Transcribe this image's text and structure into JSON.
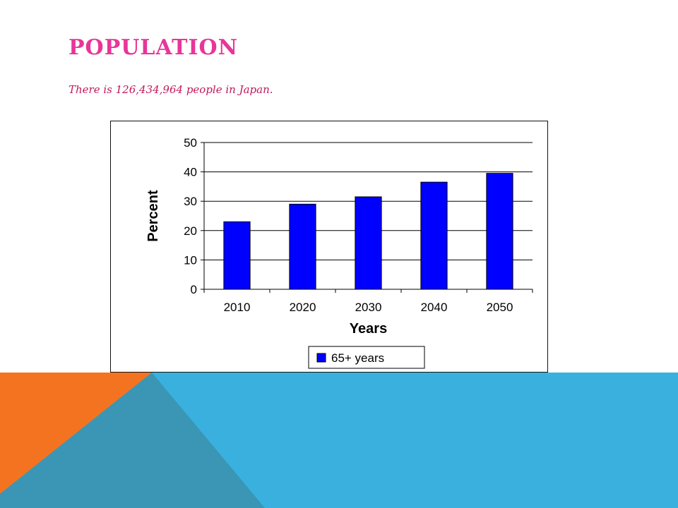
{
  "slide": {
    "title": "Population",
    "subtitle": "There is 126,434,964 people in Japan."
  },
  "colors": {
    "title": "#e8359a",
    "subtitle": "#c2185b",
    "bar_fill": "#0000ff",
    "bar_stroke": "#000000",
    "orange": "#f47321",
    "blue": "#3ab0df",
    "teal": "#3a96b4"
  },
  "chart_data": {
    "type": "bar",
    "categories": [
      "2010",
      "2020",
      "2030",
      "2040",
      "2050"
    ],
    "series": [
      {
        "name": "65+ years",
        "values": [
          23,
          29,
          31.5,
          36.5,
          39.5
        ]
      }
    ],
    "xlabel": "Years",
    "ylabel": "Percent",
    "ylim": [
      0,
      50
    ],
    "yticks": [
      0,
      10,
      20,
      30,
      40,
      50
    ],
    "grid": true,
    "legend": "bottom"
  }
}
